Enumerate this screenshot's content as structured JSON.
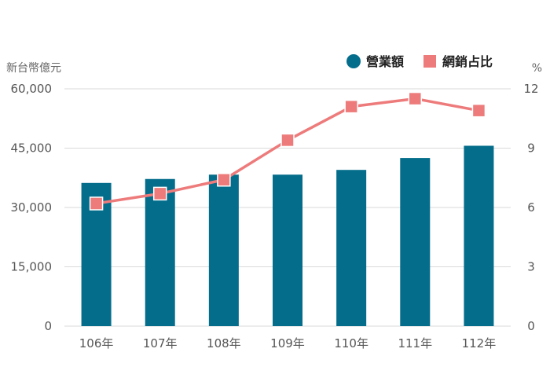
{
  "chart_data": {
    "type": "bar",
    "categories": [
      "106年",
      "107年",
      "108年",
      "109年",
      "110年",
      "111年",
      "112年"
    ],
    "series": [
      {
        "name": "營業額",
        "type": "bar",
        "axis": "left",
        "color": "#046d8b",
        "values": [
          36200,
          37200,
          38300,
          38300,
          39500,
          42500,
          45600
        ]
      },
      {
        "name": "網銷占比",
        "type": "line",
        "axis": "right",
        "color": "#ee7b7b",
        "values": [
          6.2,
          6.7,
          7.4,
          9.4,
          11.1,
          11.5,
          10.9
        ]
      }
    ],
    "left_axis": {
      "unit": "新台幣億元",
      "range": [
        0,
        60000
      ],
      "ticks": [
        "0",
        "15,000",
        "30,000",
        "45,000",
        "60,000"
      ]
    },
    "right_axis": {
      "unit": "%",
      "range": [
        0,
        12
      ],
      "ticks": [
        "0",
        "3",
        "6",
        "9",
        "12"
      ]
    },
    "grid": true,
    "legend_position": "top-right"
  }
}
